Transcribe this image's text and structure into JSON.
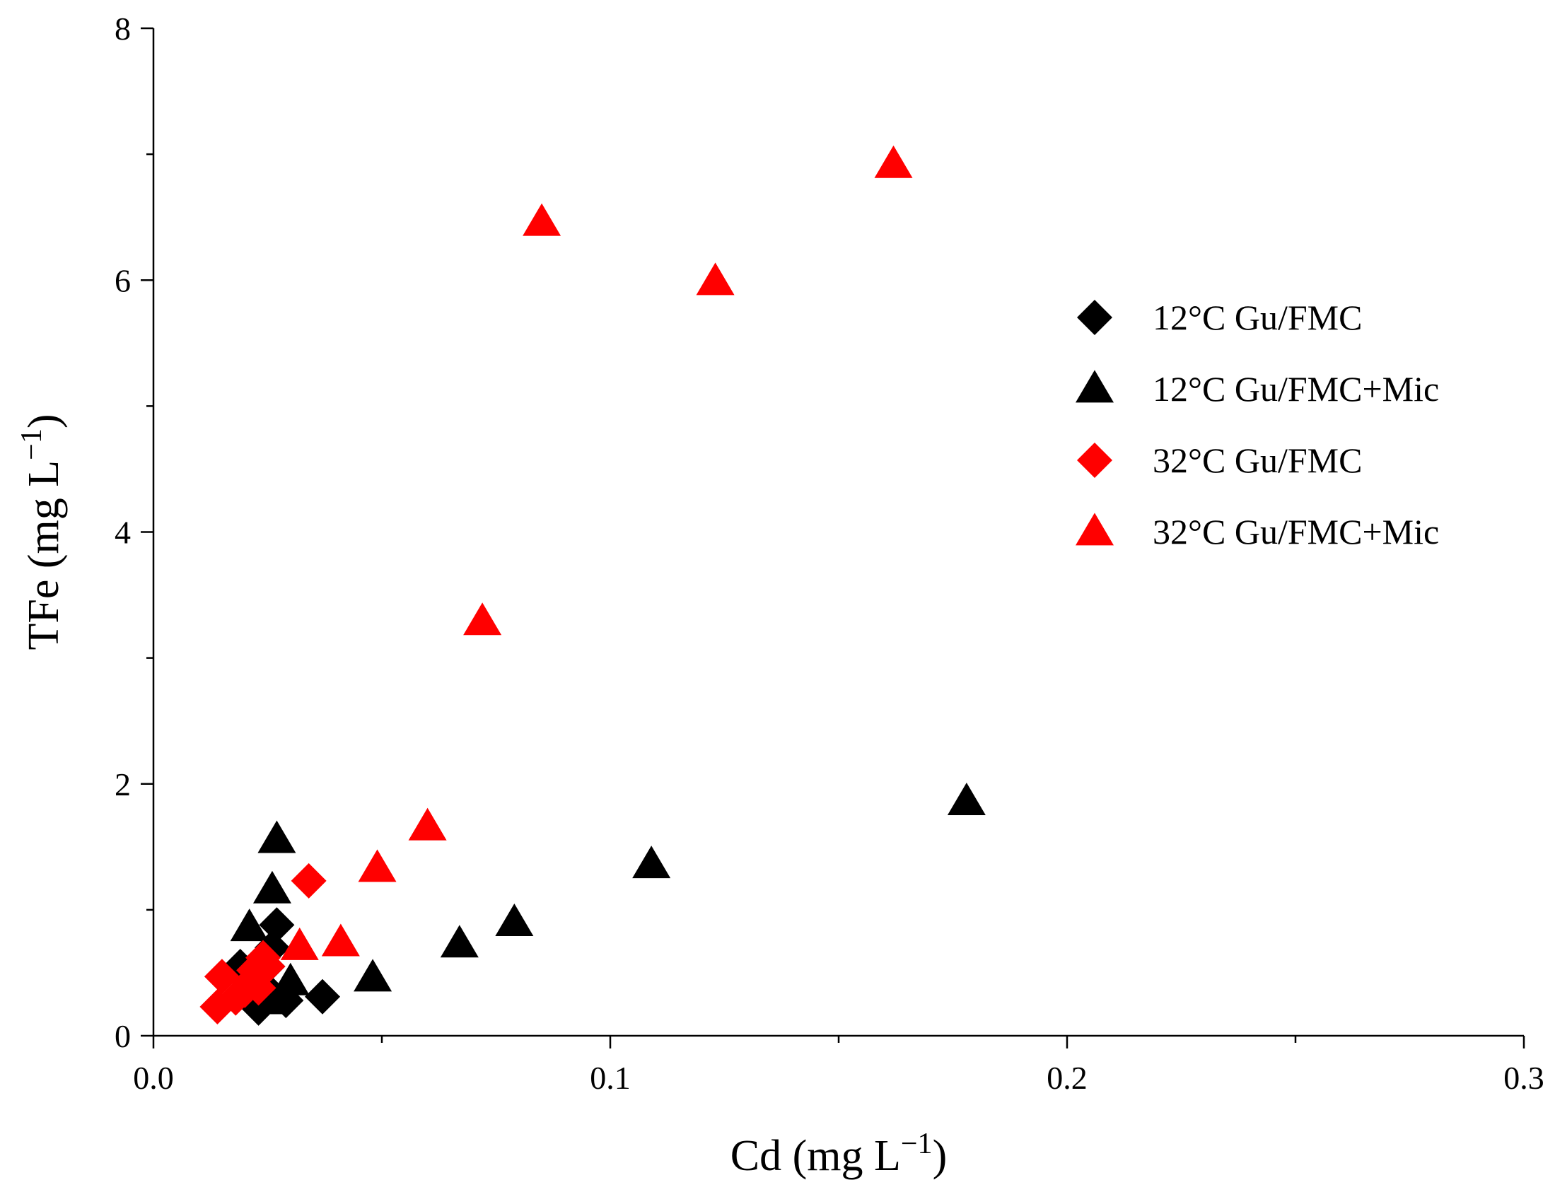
{
  "chart_data": {
    "type": "scatter",
    "title": "",
    "xlabel": "Cd (mg L",
    "xlabel_sup": "−1",
    "xlabel_close": ")",
    "ylabel": "TFe (mg L",
    "ylabel_sup": "−1",
    "ylabel_close": ")",
    "xlim": [
      0,
      0.3
    ],
    "ylim": [
      0,
      8
    ],
    "x_major_ticks": [
      0,
      0.1,
      0.2,
      0.3
    ],
    "x_minor_ticks": [
      0.05,
      0.15,
      0.25
    ],
    "x_tick_labels": [
      "0.0",
      "0.1",
      "0.2",
      "0.3"
    ],
    "y_major_ticks": [
      0,
      2,
      4,
      6,
      8
    ],
    "y_minor_ticks": [
      1,
      3,
      5,
      7
    ],
    "y_tick_labels": [
      "0",
      "2",
      "4",
      "6",
      "8"
    ],
    "grid": false,
    "legend_position": "right",
    "series": [
      {
        "name": "12°C Gu/FMC",
        "marker": "diamond",
        "color": "#000000",
        "points": [
          [
            0.019,
            0.55
          ],
          [
            0.021,
            0.45
          ],
          [
            0.022,
            0.3
          ],
          [
            0.023,
            0.22
          ],
          [
            0.024,
            0.4
          ],
          [
            0.025,
            0.55
          ],
          [
            0.026,
            0.7
          ],
          [
            0.027,
            0.88
          ],
          [
            0.029,
            0.28
          ],
          [
            0.037,
            0.31
          ]
        ]
      },
      {
        "name": "12°C Gu/FMC+Mic",
        "marker": "triangle",
        "color": "#000000",
        "points": [
          [
            0.021,
            0.86
          ],
          [
            0.025,
            0.28
          ],
          [
            0.026,
            1.16
          ],
          [
            0.027,
            1.56
          ],
          [
            0.03,
            0.43
          ],
          [
            0.048,
            0.46
          ],
          [
            0.067,
            0.73
          ],
          [
            0.079,
            0.9
          ],
          [
            0.109,
            1.36
          ],
          [
            0.178,
            1.86
          ]
        ]
      },
      {
        "name": "32°C Gu/FMC",
        "marker": "diamond",
        "color": "#ff0000",
        "points": [
          [
            0.014,
            0.23
          ],
          [
            0.015,
            0.47
          ],
          [
            0.018,
            0.3
          ],
          [
            0.02,
            0.36
          ],
          [
            0.021,
            0.42
          ],
          [
            0.022,
            0.52
          ],
          [
            0.023,
            0.38
          ],
          [
            0.024,
            0.62
          ],
          [
            0.025,
            0.55
          ],
          [
            0.034,
            1.23
          ]
        ]
      },
      {
        "name": "32°C Gu/FMC+Mic",
        "marker": "triangle",
        "color": "#ff0000",
        "points": [
          [
            0.032,
            0.71
          ],
          [
            0.041,
            0.74
          ],
          [
            0.049,
            1.33
          ],
          [
            0.06,
            1.66
          ],
          [
            0.072,
            3.29
          ],
          [
            0.085,
            6.46
          ],
          [
            0.123,
            5.99
          ],
          [
            0.162,
            6.92
          ]
        ]
      }
    ]
  }
}
